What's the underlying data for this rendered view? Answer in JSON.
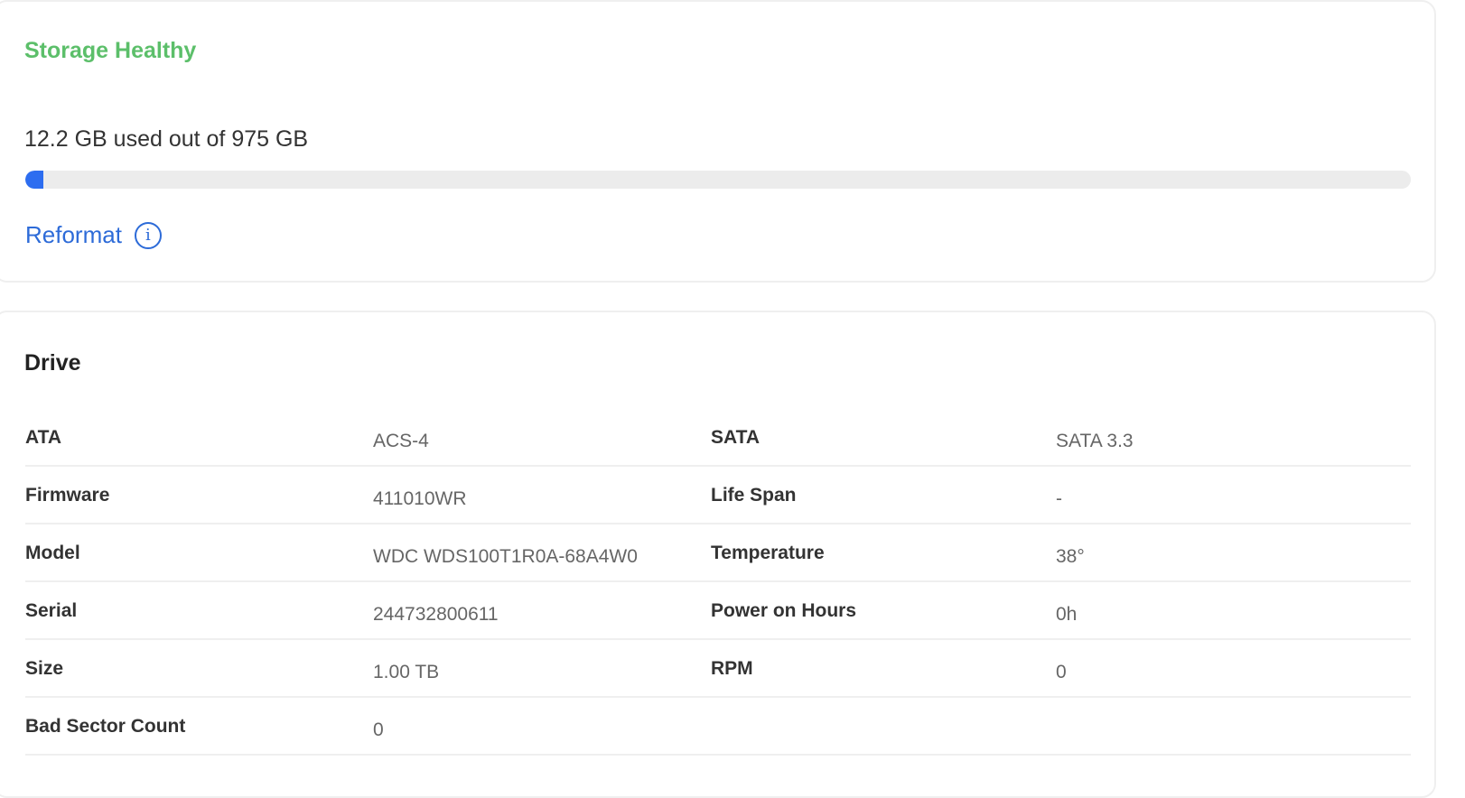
{
  "storage": {
    "status": "Storage Healthy",
    "status_color": "#5cbf6a",
    "usage_text": "12.2 GB used out of 975 GB",
    "used_percent": 1.25,
    "bar_color": "#2d6df0",
    "reformat_label": "Reformat",
    "info_icon": "info-icon"
  },
  "drive": {
    "title": "Drive",
    "rows": [
      {
        "label1": "ATA",
        "value1": "ACS-4",
        "label2": "SATA",
        "value2": "SATA 3.3"
      },
      {
        "label1": "Firmware",
        "value1": "411010WR",
        "label2": "Life Span",
        "value2": "-"
      },
      {
        "label1": "Model",
        "value1": "WDC WDS100T1R0A-68A4W0",
        "label2": "Temperature",
        "value2": "38°"
      },
      {
        "label1": "Serial",
        "value1": "244732800611",
        "label2": "Power on Hours",
        "value2": "0h"
      },
      {
        "label1": "Size",
        "value1": "1.00 TB",
        "label2": "RPM",
        "value2": "0"
      },
      {
        "label1": "Bad Sector Count",
        "value1": "0",
        "label2": "",
        "value2": ""
      }
    ]
  }
}
